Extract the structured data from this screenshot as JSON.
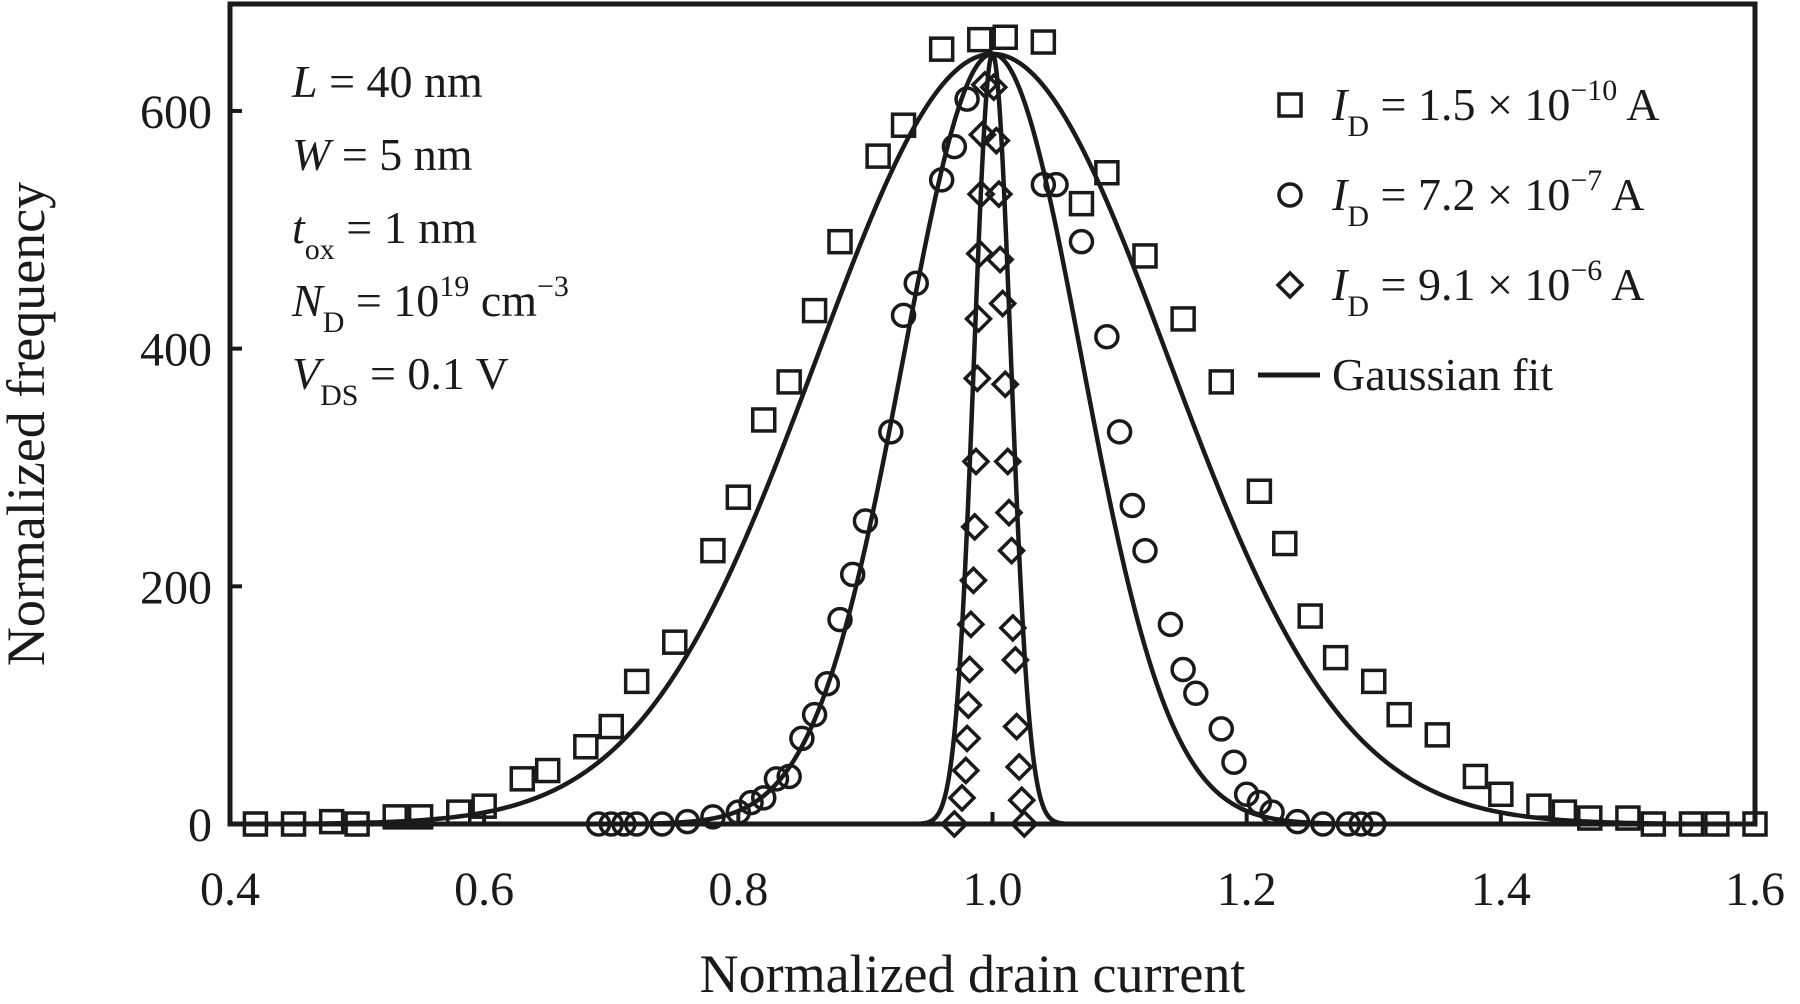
{
  "chart_data": {
    "type": "scatter",
    "xlabel": "Normalized drain current",
    "ylabel": "Normalized frequency",
    "xlim": [
      0.4,
      1.6
    ],
    "ylim": [
      0,
      690
    ],
    "xticks": [
      "0.4",
      "0.6",
      "0.8",
      "1.0",
      "1.2",
      "1.4",
      "1.6"
    ],
    "yticks": [
      "0",
      "200",
      "400",
      "600"
    ],
    "legend_position": "top-right",
    "parameters": [
      {
        "symbol": "L",
        "sub": "",
        "sup": "",
        "value": " = 40 nm"
      },
      {
        "symbol": "W",
        "sub": "",
        "sup": "",
        "value": " = 5 nm"
      },
      {
        "symbol": "t",
        "sub": "ox",
        "value": " = 1 nm"
      },
      {
        "symbol": "N",
        "sub": "D",
        "value": " = 10",
        "sup": "19",
        "unit": " cm",
        "unit_sup": "−3"
      },
      {
        "symbol": "V",
        "sub": "DS",
        "value": " = 0.1 V"
      }
    ],
    "legend": [
      {
        "marker": "square",
        "symbol": "I",
        "sub": "D",
        "value": " = 1.5 × 10",
        "sup": "−10",
        "unit": " A"
      },
      {
        "marker": "circle",
        "symbol": "I",
        "sub": "D",
        "value": " = 7.2 × 10",
        "sup": "−7",
        "unit": " A"
      },
      {
        "marker": "diamond",
        "symbol": "I",
        "sub": "D",
        "value": " = 9.1 × 10",
        "sup": "−6",
        "unit": " A"
      },
      {
        "marker": "line",
        "label": "Gaussian fit"
      }
    ],
    "series": [
      {
        "marker": "square",
        "points": [
          [
            0.42,
            0
          ],
          [
            0.45,
            0
          ],
          [
            0.48,
            2
          ],
          [
            0.5,
            0
          ],
          [
            0.53,
            6
          ],
          [
            0.55,
            6
          ],
          [
            0.58,
            10
          ],
          [
            0.6,
            15
          ],
          [
            0.63,
            38
          ],
          [
            0.65,
            45
          ],
          [
            0.68,
            65
          ],
          [
            0.7,
            82
          ],
          [
            0.72,
            120
          ],
          [
            0.75,
            153
          ],
          [
            0.78,
            230
          ],
          [
            0.8,
            275
          ],
          [
            0.82,
            340
          ],
          [
            0.84,
            372
          ],
          [
            0.86,
            432
          ],
          [
            0.88,
            490
          ],
          [
            0.91,
            562
          ],
          [
            0.93,
            588
          ],
          [
            0.96,
            652
          ],
          [
            0.99,
            660
          ],
          [
            1.01,
            662
          ],
          [
            1.04,
            658
          ],
          [
            1.07,
            522
          ],
          [
            1.09,
            548
          ],
          [
            1.12,
            478
          ],
          [
            1.15,
            425
          ],
          [
            1.18,
            372
          ],
          [
            1.21,
            280
          ],
          [
            1.23,
            236
          ],
          [
            1.25,
            175
          ],
          [
            1.27,
            140
          ],
          [
            1.3,
            120
          ],
          [
            1.32,
            92
          ],
          [
            1.35,
            75
          ],
          [
            1.38,
            40
          ],
          [
            1.4,
            25
          ],
          [
            1.43,
            15
          ],
          [
            1.45,
            10
          ],
          [
            1.47,
            5
          ],
          [
            1.5,
            5
          ],
          [
            1.52,
            0
          ],
          [
            1.55,
            0
          ],
          [
            1.57,
            0
          ],
          [
            1.6,
            0
          ]
        ]
      },
      {
        "marker": "circle",
        "points": [
          [
            0.69,
            0
          ],
          [
            0.7,
            0
          ],
          [
            0.71,
            0
          ],
          [
            0.72,
            0
          ],
          [
            0.74,
            0
          ],
          [
            0.76,
            2
          ],
          [
            0.78,
            6
          ],
          [
            0.8,
            10
          ],
          [
            0.81,
            18
          ],
          [
            0.82,
            22
          ],
          [
            0.83,
            38
          ],
          [
            0.84,
            40
          ],
          [
            0.85,
            72
          ],
          [
            0.86,
            92
          ],
          [
            0.87,
            118
          ],
          [
            0.88,
            172
          ],
          [
            0.89,
            210
          ],
          [
            0.9,
            255
          ],
          [
            0.92,
            330
          ],
          [
            0.93,
            428
          ],
          [
            0.94,
            455
          ],
          [
            0.96,
            542
          ],
          [
            0.97,
            570
          ],
          [
            0.98,
            610
          ],
          [
            1.04,
            538
          ],
          [
            1.05,
            538
          ],
          [
            1.07,
            490
          ],
          [
            1.09,
            410
          ],
          [
            1.1,
            330
          ],
          [
            1.11,
            268
          ],
          [
            1.12,
            230
          ],
          [
            1.14,
            168
          ],
          [
            1.15,
            130
          ],
          [
            1.16,
            110
          ],
          [
            1.18,
            80
          ],
          [
            1.19,
            52
          ],
          [
            1.2,
            25
          ],
          [
            1.21,
            18
          ],
          [
            1.22,
            10
          ],
          [
            1.24,
            2
          ],
          [
            1.26,
            0
          ],
          [
            1.28,
            0
          ],
          [
            1.29,
            0
          ],
          [
            1.3,
            0
          ]
        ]
      },
      {
        "marker": "diamond",
        "points": [
          [
            0.97,
            0
          ],
          [
            0.976,
            22
          ],
          [
            0.979,
            45
          ],
          [
            0.98,
            72
          ],
          [
            0.981,
            100
          ],
          [
            0.982,
            130
          ],
          [
            0.983,
            168
          ],
          [
            0.985,
            205
          ],
          [
            0.986,
            250
          ],
          [
            0.987,
            305
          ],
          [
            0.988,
            375
          ],
          [
            0.989,
            425
          ],
          [
            0.99,
            480
          ],
          [
            0.991,
            530
          ],
          [
            0.992,
            580
          ],
          [
            0.994,
            622
          ],
          [
            1.001,
            620
          ],
          [
            1.003,
            575
          ],
          [
            1.005,
            530
          ],
          [
            1.006,
            475
          ],
          [
            1.008,
            438
          ],
          [
            1.01,
            370
          ],
          [
            1.012,
            305
          ],
          [
            1.013,
            262
          ],
          [
            1.015,
            230
          ],
          [
            1.016,
            165
          ],
          [
            1.018,
            138
          ],
          [
            1.019,
            82
          ],
          [
            1.021,
            48
          ],
          [
            1.023,
            20
          ],
          [
            1.025,
            0
          ]
        ]
      }
    ],
    "fits": [
      {
        "mean": 1.0,
        "sigma": 0.138,
        "peak": 648
      },
      {
        "mean": 1.0,
        "sigma": 0.07,
        "peak": 648
      },
      {
        "mean": 1.0,
        "sigma": 0.0145,
        "peak": 648
      }
    ]
  }
}
